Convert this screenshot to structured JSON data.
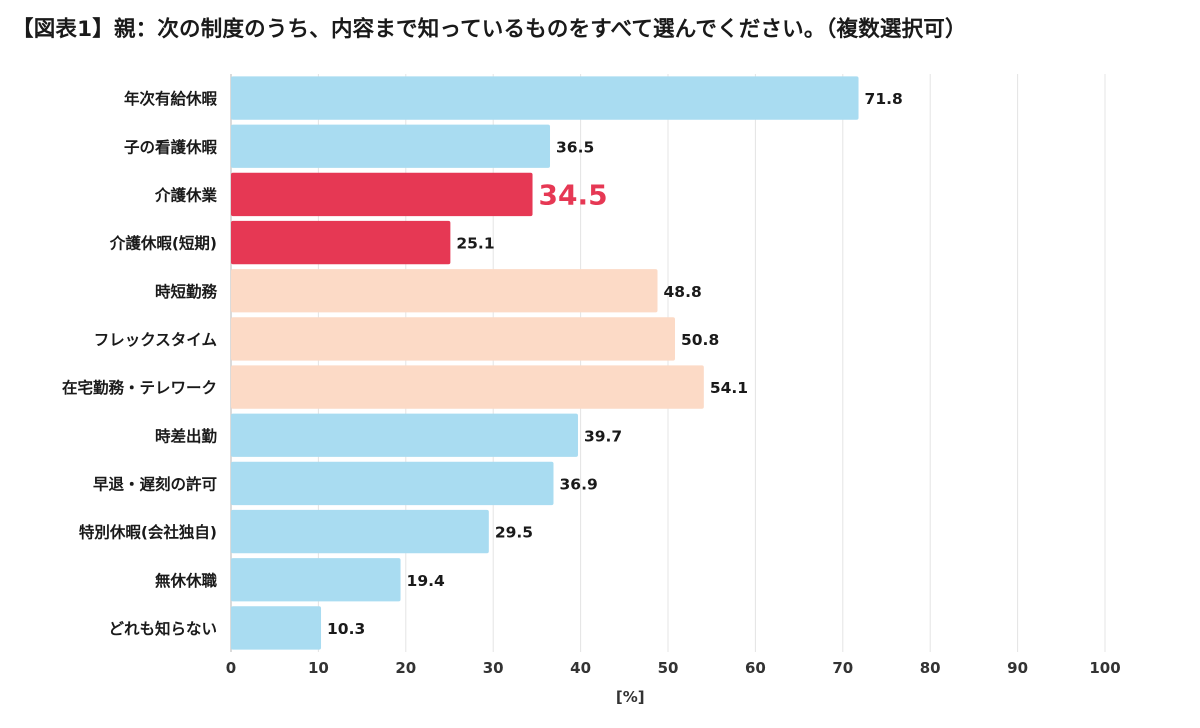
{
  "title": "【図表1】親：次の制度のうち、内容まで知っているものをすべて選んでください。（複数選択可）",
  "chart_data": {
    "type": "bar",
    "orientation": "horizontal",
    "title": "【図表1】親：次の制度のうち、内容まで知っているものをすべて選んでください。（複数選択可）",
    "xlabel": "[%]",
    "ylabel": "",
    "xlim": [
      0,
      100
    ],
    "xticks": [
      "0",
      "10",
      "20",
      "30",
      "40",
      "50",
      "60",
      "70",
      "80",
      "90",
      "100"
    ],
    "grid": true,
    "legend": "none",
    "categories": [
      "年次有給休暇",
      "子の看護休暇",
      "介護休業",
      "介護休暇(短期)",
      "時短勤務",
      "フレックスタイム",
      "在宅勤務・テレワーク",
      "時差出勤",
      "早退・遅刻の許可",
      "特別休暇(会社独自)",
      "無休休職",
      "どれも知らない"
    ],
    "values": [
      71.8,
      36.5,
      34.5,
      25.1,
      48.8,
      50.8,
      54.1,
      39.7,
      36.9,
      29.5,
      19.4,
      10.3
    ],
    "value_labels": [
      "71.8",
      "36.5",
      "34.5",
      "25.1",
      "48.8",
      "50.8",
      "54.1",
      "39.7",
      "36.9",
      "29.5",
      "19.4",
      "10.3"
    ],
    "bar_colors": [
      "#a9dcf1",
      "#a9dcf1",
      "#e63854",
      "#e63854",
      "#fcdac6",
      "#fcdac6",
      "#fcdac6",
      "#a9dcf1",
      "#a9dcf1",
      "#a9dcf1",
      "#a9dcf1",
      "#a9dcf1"
    ],
    "highlight_index": 2,
    "highlight_label_color": "#e63854"
  }
}
